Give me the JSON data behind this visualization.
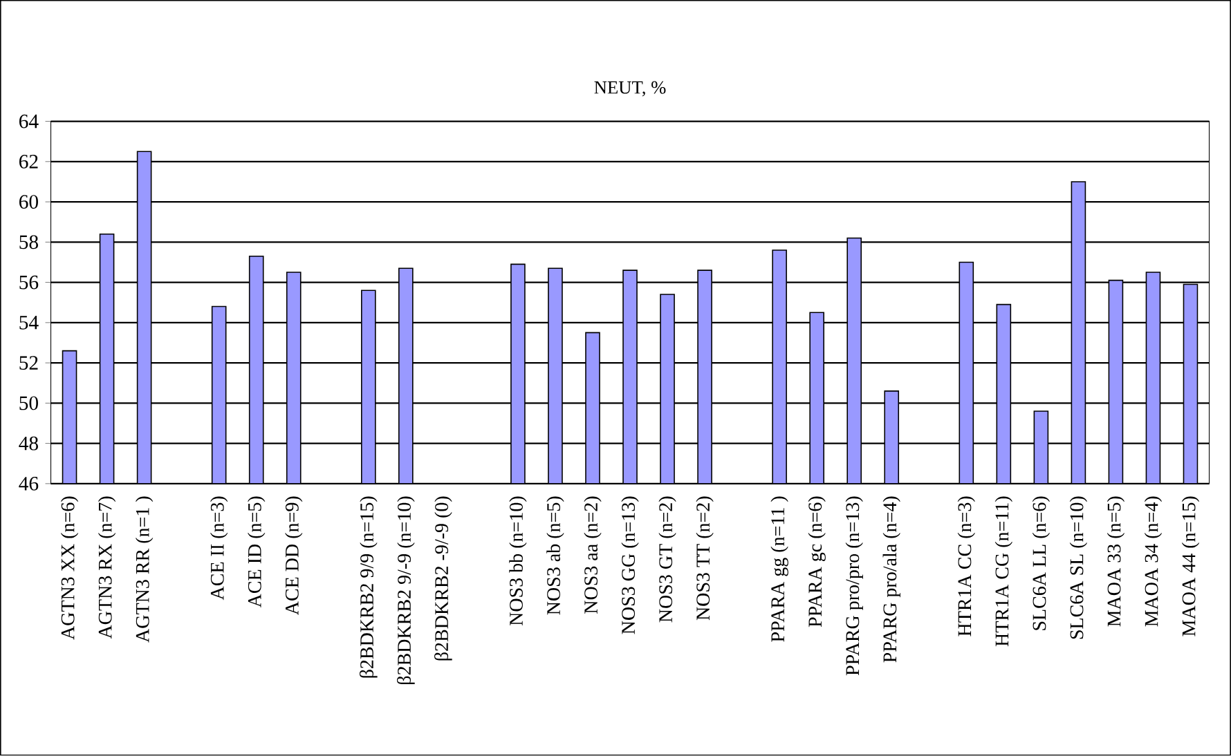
{
  "chart_data": {
    "type": "bar",
    "title": "NEUT, %",
    "categories": [
      "AGTN3 XX (n=6)",
      "AGTN3 RX (n=7)",
      "AGTN3 RR (n=1 )",
      null,
      "ACE II (n=3)",
      "ACE ID (n=5)",
      "ACE DD  (n=9)",
      null,
      "β2BDKRB2 9/9 (n=15)",
      "β2BDKRB2 9/-9 (n=10)",
      "β2BDKRB2 -9/-9 (0)",
      null,
      "NOS3 bb (n=10)",
      "NOS3 ab (n=5)",
      "NOS3 aa (n=2)",
      "NOS3 GG (n=13)",
      "NOS3 GT (n=2)",
      "NOS3 TT (n=2)",
      null,
      "PPARA gg (n=11 )",
      "PPARA gc (n=6)",
      "PPARG pro/pro (n=13)",
      "PPARG pro/ala (n=4)",
      null,
      "HTR1A CC (n=3)",
      "HTR1A CG (n=11)",
      "SLC6A LL (n=6)",
      "SLC6A SL (n=10)",
      "MAOA 33 (n=5)",
      "MAOA 34 (n=4)",
      "MAOA 44 (n=15)"
    ],
    "values": [
      52.6,
      58.4,
      62.5,
      null,
      54.8,
      57.3,
      56.5,
      null,
      55.6,
      56.7,
      null,
      null,
      56.9,
      56.7,
      53.5,
      56.6,
      55.4,
      56.6,
      null,
      57.6,
      54.5,
      58.2,
      50.6,
      null,
      57.0,
      54.9,
      49.6,
      61.0,
      56.1,
      56.5,
      55.9
    ],
    "color": "#9999ff",
    "ylim": [
      46,
      64
    ],
    "yticks": [
      46,
      48,
      50,
      52,
      54,
      56,
      58,
      60,
      62,
      64
    ],
    "grid": "y"
  }
}
